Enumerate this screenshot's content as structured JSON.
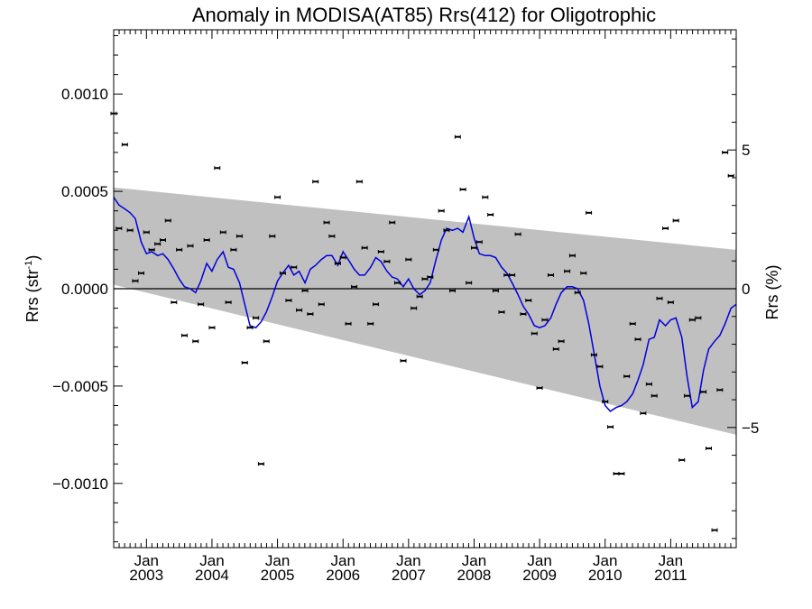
{
  "chart_data": {
    "type": "scatter",
    "title": "Anomaly in MODISA(AT85) Rrs(412) for Oligotrophic",
    "ylabel_left": {
      "base": "Rrs (str",
      "sup": "-1",
      "close": ")"
    },
    "ylabel_right": "Rrs (%)",
    "xlim": [
      2002.5,
      2012.0
    ],
    "ylim": [
      -0.00133,
      0.00133
    ],
    "y2lim": [
      -9.33,
      9.33
    ],
    "x_ticks": [
      {
        "x": 2003.0,
        "month": "Jan",
        "year": "2003"
      },
      {
        "x": 2004.0,
        "month": "Jan",
        "year": "2004"
      },
      {
        "x": 2005.0,
        "month": "Jan",
        "year": "2005"
      },
      {
        "x": 2006.0,
        "month": "Jan",
        "year": "2006"
      },
      {
        "x": 2007.0,
        "month": "Jan",
        "year": "2007"
      },
      {
        "x": 2008.0,
        "month": "Jan",
        "year": "2008"
      },
      {
        "x": 2009.0,
        "month": "Jan",
        "year": "2009"
      },
      {
        "x": 2010.0,
        "month": "Jan",
        "year": "2010"
      },
      {
        "x": 2011.0,
        "month": "Jan",
        "year": "2011"
      }
    ],
    "y_ticks": [
      {
        "value": 0.001,
        "label": "0.0010"
      },
      {
        "value": 0.0005,
        "label": "0.0005"
      },
      {
        "value": 0.0,
        "label": "0.0000"
      },
      {
        "value": -0.0005,
        "label": "−0.0005"
      },
      {
        "value": -0.001,
        "label": "−0.0010"
      }
    ],
    "y2_ticks": [
      {
        "value": 5,
        "label": "5"
      },
      {
        "value": 0,
        "label": "0"
      },
      {
        "value": -5,
        "label": "−5"
      }
    ],
    "colors": {
      "band": "#c0c0c0",
      "smooth": "#0000dd",
      "points": "#000000",
      "zero_line": "#000000"
    },
    "band": {
      "upper": [
        [
          2002.5,
          0.00052
        ],
        [
          2012.0,
          0.0002
        ]
      ],
      "lower": [
        [
          2002.5,
          2e-05
        ],
        [
          2012.0,
          -0.00075
        ]
      ]
    },
    "points": [
      [
        2002.5,
        0.0009
      ],
      [
        2002.58,
        0.00031
      ],
      [
        2002.67,
        0.00074
      ],
      [
        2002.75,
        0.0003
      ],
      [
        2002.83,
        4e-05
      ],
      [
        2002.92,
        8e-05
      ],
      [
        2003.0,
        0.00029
      ],
      [
        2003.08,
        0.0002
      ],
      [
        2003.17,
        0.00023
      ],
      [
        2003.25,
        0.00025
      ],
      [
        2003.33,
        0.00035
      ],
      [
        2003.42,
        -7e-05
      ],
      [
        2003.5,
        0.0002
      ],
      [
        2003.58,
        -0.00024
      ],
      [
        2003.67,
        0.00022
      ],
      [
        2003.75,
        -0.00027
      ],
      [
        2003.83,
        -8e-05
      ],
      [
        2003.92,
        0.00025
      ],
      [
        2004.0,
        -0.0002
      ],
      [
        2004.08,
        0.00062
      ],
      [
        2004.17,
        0.00029
      ],
      [
        2004.25,
        -7e-05
      ],
      [
        2004.33,
        0.0002
      ],
      [
        2004.42,
        0.00027
      ],
      [
        2004.5,
        -0.00038
      ],
      [
        2004.58,
        -0.0002
      ],
      [
        2004.67,
        -0.00015
      ],
      [
        2004.75,
        -0.0009
      ],
      [
        2004.83,
        -0.00027
      ],
      [
        2004.92,
        0.00027
      ],
      [
        2005.0,
        0.00047
      ],
      [
        2005.08,
        8e-05
      ],
      [
        2005.17,
        -6e-05
      ],
      [
        2005.25,
        0.00011
      ],
      [
        2005.33,
        -0.00011
      ],
      [
        2005.42,
        -1e-05
      ],
      [
        2005.5,
        -0.00013
      ],
      [
        2005.58,
        0.00055
      ],
      [
        2005.67,
        -8e-05
      ],
      [
        2005.75,
        0.00034
      ],
      [
        2005.83,
        0.00027
      ],
      [
        2005.92,
        0.00013
      ],
      [
        2006.0,
        0.00016
      ],
      [
        2006.08,
        -0.00018
      ],
      [
        2006.17,
        1e-05
      ],
      [
        2006.25,
        0.00055
      ],
      [
        2006.33,
        0.00021
      ],
      [
        2006.42,
        -0.00018
      ],
      [
        2006.5,
        -8e-05
      ],
      [
        2006.58,
        0.00019
      ],
      [
        2006.67,
        0.00014
      ],
      [
        2006.75,
        0.00034
      ],
      [
        2006.83,
        3e-05
      ],
      [
        2006.92,
        -0.00037
      ],
      [
        2007.0,
        0.00015
      ],
      [
        2007.08,
        -0.0001
      ],
      [
        2007.17,
        -4e-05
      ],
      [
        2007.25,
        5e-05
      ],
      [
        2007.33,
        6e-05
      ],
      [
        2007.42,
        0.0002
      ],
      [
        2007.5,
        0.0004
      ],
      [
        2007.58,
        0.0003
      ],
      [
        2007.67,
        -1e-05
      ],
      [
        2007.75,
        0.00078
      ],
      [
        2007.83,
        0.00051
      ],
      [
        2007.92,
        3e-05
      ],
      [
        2008.0,
        0.00021
      ],
      [
        2008.08,
        0.00024
      ],
      [
        2008.17,
        0.00047
      ],
      [
        2008.25,
        0.00038
      ],
      [
        2008.33,
        -1e-05
      ],
      [
        2008.42,
        -0.00012
      ],
      [
        2008.5,
        7e-05
      ],
      [
        2008.58,
        7e-05
      ],
      [
        2008.67,
        0.00028
      ],
      [
        2008.75,
        -0.00013
      ],
      [
        2008.83,
        -6e-05
      ],
      [
        2008.92,
        -0.00023
      ],
      [
        2009.0,
        -0.00051
      ],
      [
        2009.08,
        -0.00016
      ],
      [
        2009.17,
        7e-05
      ],
      [
        2009.25,
        -0.00031
      ],
      [
        2009.33,
        -0.00027
      ],
      [
        2009.42,
        9e-05
      ],
      [
        2009.5,
        0.00017
      ],
      [
        2009.58,
        -2e-05
      ],
      [
        2009.67,
        8e-05
      ],
      [
        2009.75,
        0.00039
      ],
      [
        2009.83,
        -0.00034
      ],
      [
        2009.92,
        -0.0004
      ],
      [
        2010.0,
        -0.00058
      ],
      [
        2010.08,
        -0.00071
      ],
      [
        2010.17,
        -0.00095
      ],
      [
        2010.25,
        -0.00095
      ],
      [
        2010.33,
        -0.00045
      ],
      [
        2010.42,
        -0.00018
      ],
      [
        2010.5,
        -0.00026
      ],
      [
        2010.58,
        -0.00064
      ],
      [
        2010.67,
        -0.00049
      ],
      [
        2010.75,
        -0.00055
      ],
      [
        2010.83,
        -5e-05
      ],
      [
        2010.92,
        0.00031
      ],
      [
        2011.0,
        -7e-05
      ],
      [
        2011.08,
        0.00035
      ],
      [
        2011.17,
        -0.00088
      ],
      [
        2011.25,
        -0.00055
      ],
      [
        2011.33,
        -0.00016
      ],
      [
        2011.42,
        -0.00015
      ],
      [
        2011.5,
        -0.00053
      ],
      [
        2011.58,
        -0.00082
      ],
      [
        2011.67,
        -0.00124
      ],
      [
        2011.75,
        -0.00052
      ],
      [
        2011.83,
        0.0007
      ],
      [
        2011.92,
        0.00058
      ]
    ],
    "smooth_line": [
      [
        2002.5,
        0.00047
      ],
      [
        2002.58,
        0.00043
      ],
      [
        2002.67,
        0.00041
      ],
      [
        2002.75,
        0.00039
      ],
      [
        2002.83,
        0.00036
      ],
      [
        2002.92,
        0.00024
      ],
      [
        2003.0,
        0.00018
      ],
      [
        2003.08,
        0.00019
      ],
      [
        2003.17,
        0.00017
      ],
      [
        2003.25,
        0.00018
      ],
      [
        2003.33,
        0.00015
      ],
      [
        2003.42,
        0.0001
      ],
      [
        2003.5,
        5e-05
      ],
      [
        2003.58,
        1e-05
      ],
      [
        2003.67,
        0.0
      ],
      [
        2003.75,
        -2e-05
      ],
      [
        2003.83,
        4e-05
      ],
      [
        2003.92,
        0.00013
      ],
      [
        2004.0,
        9e-05
      ],
      [
        2004.08,
        0.00015
      ],
      [
        2004.17,
        0.00019
      ],
      [
        2004.25,
        0.00011
      ],
      [
        2004.33,
        0.0001
      ],
      [
        2004.42,
        3e-05
      ],
      [
        2004.5,
        -8e-05
      ],
      [
        2004.58,
        -0.00019
      ],
      [
        2004.67,
        -0.0002
      ],
      [
        2004.75,
        -0.00017
      ],
      [
        2004.83,
        -0.00012
      ],
      [
        2004.92,
        -4e-05
      ],
      [
        2005.0,
        4e-05
      ],
      [
        2005.08,
        8e-05
      ],
      [
        2005.17,
        0.00012
      ],
      [
        2005.25,
        7e-05
      ],
      [
        2005.33,
        9e-05
      ],
      [
        2005.42,
        3e-05
      ],
      [
        2005.5,
        0.0001
      ],
      [
        2005.58,
        0.00012
      ],
      [
        2005.67,
        0.00015
      ],
      [
        2005.75,
        0.00017
      ],
      [
        2005.83,
        0.00017
      ],
      [
        2005.92,
        0.00012
      ],
      [
        2006.0,
        0.00019
      ],
      [
        2006.08,
        0.00015
      ],
      [
        2006.17,
        0.0001
      ],
      [
        2006.25,
        7e-05
      ],
      [
        2006.33,
        7e-05
      ],
      [
        2006.42,
        0.00011
      ],
      [
        2006.5,
        0.00016
      ],
      [
        2006.58,
        0.00014
      ],
      [
        2006.67,
        9e-05
      ],
      [
        2006.75,
        6e-05
      ],
      [
        2006.83,
        5e-05
      ],
      [
        2006.92,
        1e-05
      ],
      [
        2007.0,
        5e-05
      ],
      [
        2007.08,
        0.0
      ],
      [
        2007.17,
        -3e-05
      ],
      [
        2007.25,
        -1e-05
      ],
      [
        2007.33,
        3e-05
      ],
      [
        2007.42,
        0.00015
      ],
      [
        2007.5,
        0.00025
      ],
      [
        2007.58,
        0.00031
      ],
      [
        2007.67,
        0.0003
      ],
      [
        2007.75,
        0.00031
      ],
      [
        2007.83,
        0.00029
      ],
      [
        2007.92,
        0.00037
      ],
      [
        2008.0,
        0.00026
      ],
      [
        2008.08,
        0.00018
      ],
      [
        2008.17,
        0.00017
      ],
      [
        2008.25,
        0.00017
      ],
      [
        2008.33,
        0.00016
      ],
      [
        2008.42,
        0.00011
      ],
      [
        2008.5,
        8e-05
      ],
      [
        2008.58,
        3e-05
      ],
      [
        2008.67,
        -3e-05
      ],
      [
        2008.75,
        -9e-05
      ],
      [
        2008.83,
        -0.00013
      ],
      [
        2008.92,
        -0.00019
      ],
      [
        2009.0,
        -0.0002
      ],
      [
        2009.08,
        -0.00019
      ],
      [
        2009.17,
        -0.00015
      ],
      [
        2009.25,
        -8e-05
      ],
      [
        2009.33,
        -2e-05
      ],
      [
        2009.42,
        1e-05
      ],
      [
        2009.5,
        1e-05
      ],
      [
        2009.58,
        0.0
      ],
      [
        2009.67,
        -6e-05
      ],
      [
        2009.75,
        -0.00018
      ],
      [
        2009.83,
        -0.00033
      ],
      [
        2009.92,
        -0.0005
      ],
      [
        2010.0,
        -0.0006
      ],
      [
        2010.08,
        -0.00063
      ],
      [
        2010.17,
        -0.00061
      ],
      [
        2010.25,
        -0.0006
      ],
      [
        2010.33,
        -0.00058
      ],
      [
        2010.42,
        -0.00054
      ],
      [
        2010.5,
        -0.00047
      ],
      [
        2010.58,
        -0.00039
      ],
      [
        2010.67,
        -0.00026
      ],
      [
        2010.75,
        -0.00025
      ],
      [
        2010.83,
        -0.00016
      ],
      [
        2010.92,
        -0.00019
      ],
      [
        2011.0,
        -0.00016
      ],
      [
        2011.08,
        -0.00015
      ],
      [
        2011.17,
        -0.00025
      ],
      [
        2011.25,
        -0.00045
      ],
      [
        2011.33,
        -0.00061
      ],
      [
        2011.42,
        -0.00058
      ],
      [
        2011.5,
        -0.00042
      ],
      [
        2011.58,
        -0.00031
      ],
      [
        2011.67,
        -0.00027
      ],
      [
        2011.75,
        -0.00024
      ],
      [
        2011.83,
        -0.00018
      ],
      [
        2011.92,
        -0.0001
      ],
      [
        2012.0,
        -8e-05
      ]
    ]
  }
}
